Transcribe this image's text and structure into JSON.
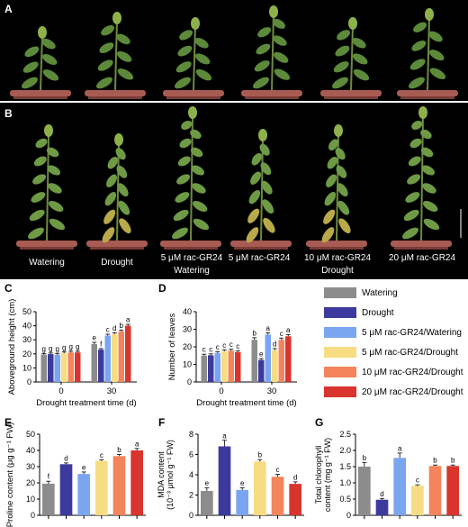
{
  "panels": {
    "A": {
      "letter": "A"
    },
    "B": {
      "letter": "B",
      "labels": [
        "Watering",
        "Drought",
        "5 μM rac-GR24",
        "5 μM rac-GR24",
        "10 μM rac-GR24",
        "20 μM rac-GR24"
      ],
      "group_watering": "Watering",
      "group_drought": "Drought"
    }
  },
  "colors": {
    "Watering": "#8c8c8c",
    "Drought": "#3c3a9c",
    "5 μM rac-GR24/Watering": "#7aa6f0",
    "5 μM rac-GR24/Drought": "#f7dc82",
    "10 μM rac-GR24/Drought": "#f4845c",
    "20 μM rac-GR24/Drought": "#d9342e"
  },
  "legend": [
    "Watering",
    "Drought",
    "5 μM rac-GR24/Watering",
    "5 μM rac-GR24/Drought",
    "10 μM rac-GR24/Drought",
    "20 μM rac-GR24/Drought"
  ],
  "chart_data": [
    {
      "id": "C",
      "type": "bar",
      "ylabel": "Aboveground height (cm)",
      "xlabel": "Drought treatment time (d)",
      "categories": [
        "0",
        "30"
      ],
      "ylim": [
        0,
        50
      ],
      "yticks": [
        0,
        10,
        20,
        30,
        40,
        50
      ],
      "series": [
        {
          "name": "Watering",
          "values": [
            19.5,
            27
          ],
          "errors": [
            0.8,
            1.2
          ],
          "letters": [
            "g",
            "e"
          ]
        },
        {
          "name": "Drought",
          "values": [
            19.8,
            23
          ],
          "errors": [
            0.8,
            0.8
          ],
          "letters": [
            "g",
            "f"
          ]
        },
        {
          "name": "5 μM rac-GR24/Watering",
          "values": [
            19.3,
            33
          ],
          "errors": [
            0.8,
            1.0
          ],
          "letters": [
            "g",
            "c"
          ]
        },
        {
          "name": "5 μM rac-GR24/Drought",
          "values": [
            20.5,
            34
          ],
          "errors": [
            0.8,
            1.0
          ],
          "letters": [
            "g",
            "d"
          ]
        },
        {
          "name": "10 μM rac-GR24/Drought",
          "values": [
            21,
            36
          ],
          "errors": [
            0.8,
            1.0
          ],
          "letters": [
            "g",
            "b"
          ]
        },
        {
          "name": "20 μM rac-GR24/Drought",
          "values": [
            21,
            40
          ],
          "errors": [
            0.8,
            1.0
          ],
          "letters": [
            "g",
            "a"
          ]
        }
      ]
    },
    {
      "id": "D",
      "type": "bar",
      "ylabel": "Number of leaves",
      "xlabel": "Drought treatment time (d)",
      "categories": [
        "0",
        "30"
      ],
      "ylim": [
        0,
        40
      ],
      "yticks": [
        0,
        10,
        20,
        30,
        40
      ],
      "series": [
        {
          "name": "Watering",
          "values": [
            15,
            24
          ],
          "errors": [
            0.8,
            1.2
          ],
          "letters": [
            "c",
            "b"
          ]
        },
        {
          "name": "Drought",
          "values": [
            15.2,
            12.5
          ],
          "errors": [
            0.8,
            0.8
          ],
          "letters": [
            "c",
            "e"
          ]
        },
        {
          "name": "5 μM rac-GR24/Watering",
          "values": [
            16.5,
            27
          ],
          "errors": [
            0.8,
            1.0
          ],
          "letters": [
            "c",
            "a"
          ]
        },
        {
          "name": "5 μM rac-GR24/Drought",
          "values": [
            17.5,
            18
          ],
          "errors": [
            0.8,
            1.0
          ],
          "letters": [
            "c",
            "d"
          ]
        },
        {
          "name": "10 μM rac-GR24/Drought",
          "values": [
            17.8,
            24
          ],
          "errors": [
            0.8,
            1.0
          ],
          "letters": [
            "c",
            "c"
          ]
        },
        {
          "name": "20 μM rac-GR24/Drought",
          "values": [
            17,
            26
          ],
          "errors": [
            0.8,
            1.0
          ],
          "letters": [
            "c",
            "a"
          ]
        }
      ]
    },
    {
      "id": "E",
      "type": "bar",
      "ylabel": "Proline content (μg g⁻¹ FW)",
      "ylim": [
        0,
        50
      ],
      "yticks": [
        0,
        10,
        20,
        30,
        40,
        50
      ],
      "values": [
        19.5,
        31.5,
        25.5,
        33.5,
        36.5,
        40
      ],
      "errors": [
        1.5,
        0.8,
        1.2,
        0.8,
        1.0,
        1.2
      ],
      "letters": [
        "f",
        "d",
        "e",
        "c",
        "b",
        "a"
      ]
    },
    {
      "id": "F",
      "type": "bar",
      "ylabel_line1": "MDA content",
      "ylabel_line2": "(10⁻³ μmol g⁻¹ FW)",
      "ylim": [
        0,
        8
      ],
      "yticks": [
        0,
        2,
        4,
        6,
        8
      ],
      "values": [
        2.4,
        6.8,
        2.5,
        5.3,
        3.8,
        3.1
      ],
      "errors": [
        0.3,
        0.6,
        0.2,
        0.2,
        0.25,
        0.2
      ],
      "letters": [
        "e",
        "a",
        "e",
        "b",
        "c",
        "d"
      ]
    },
    {
      "id": "G",
      "type": "bar",
      "ylabel_line1": "Total chlorophyll",
      "ylabel_line2": "content (mg g⁻¹ FW)",
      "ylim": [
        0,
        2.5
      ],
      "yticks": [
        0,
        0.5,
        1.0,
        1.5,
        2.0,
        2.5
      ],
      "ytick_labels": [
        "0",
        "0.5",
        "1.0",
        "1.5",
        "2.0",
        "2.5"
      ],
      "values": [
        1.5,
        0.48,
        1.77,
        0.91,
        1.52,
        1.52
      ],
      "errors": [
        0.13,
        0.04,
        0.15,
        0.03,
        0.03,
        0.03
      ],
      "letters": [
        "b",
        "d",
        "a",
        "c",
        "b",
        "b"
      ]
    }
  ]
}
